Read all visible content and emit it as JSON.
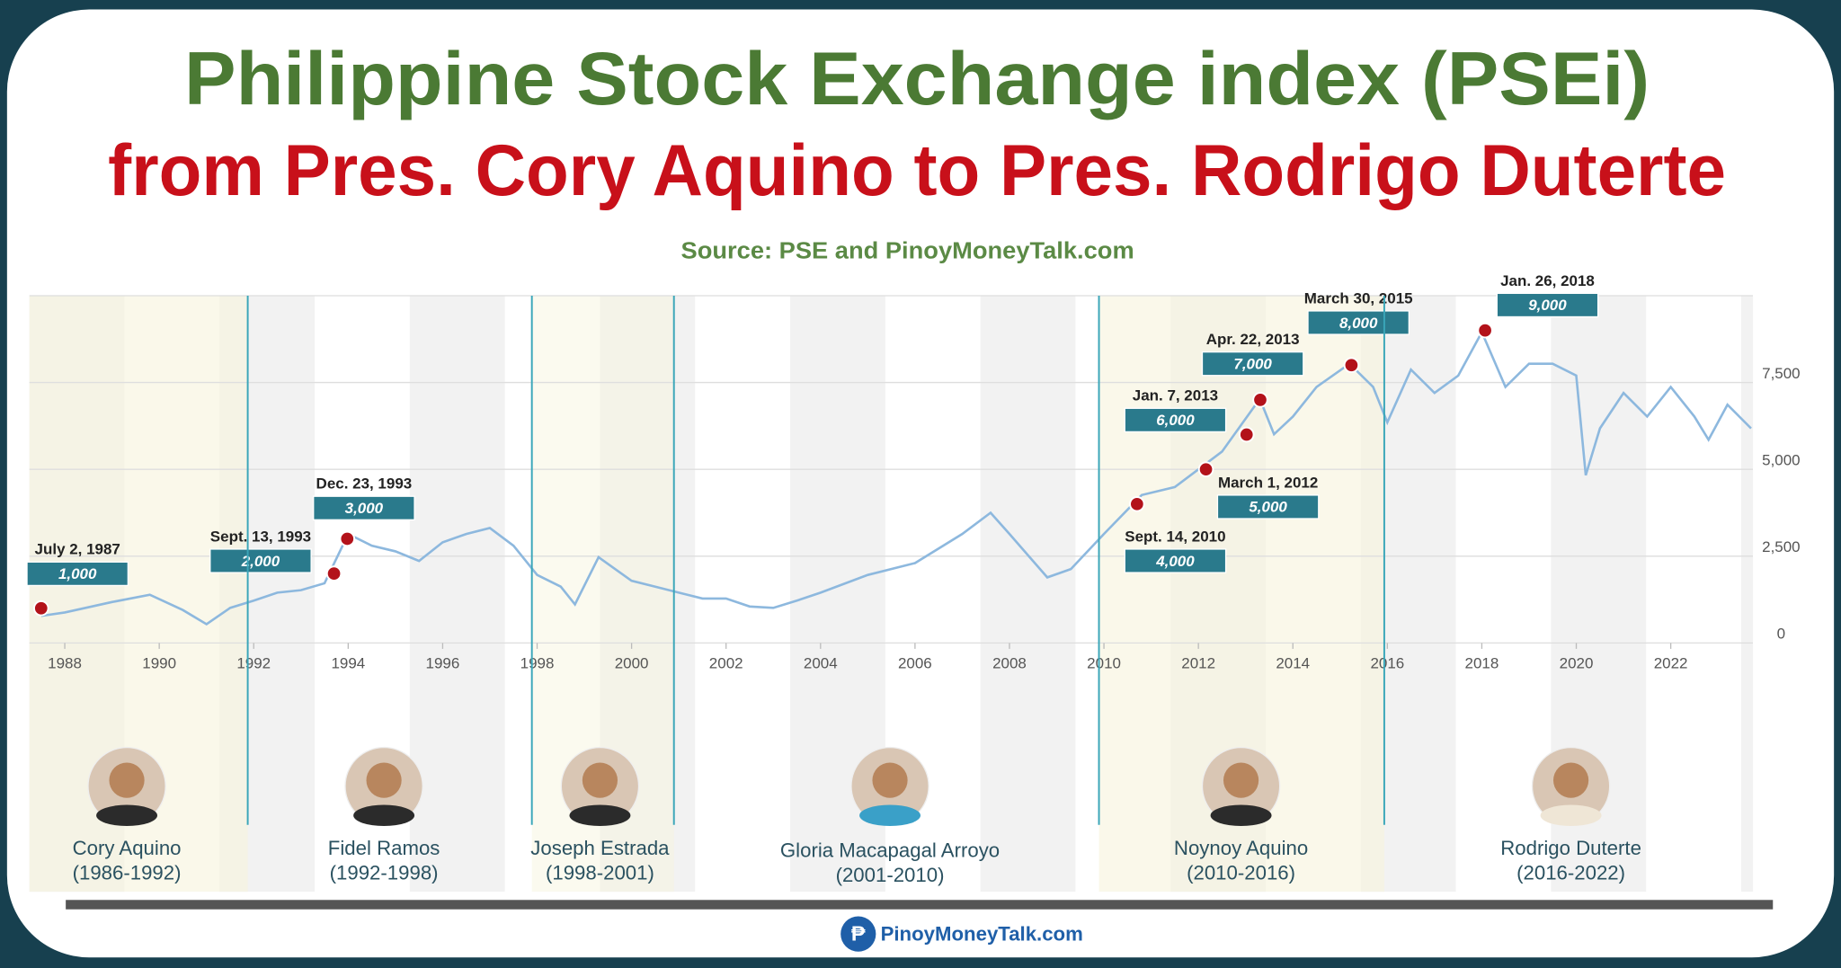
{
  "chart_data": {
    "type": "line",
    "title": "Philippine Stock Exchange index (PSEi)",
    "subtitle": "from Pres. Cory Aquino to Pres. Rodrigo Duterte",
    "source": "Source: PSE and PinoyMoneyTalk.com",
    "x": [
      1987.5,
      1988,
      1989,
      1989.8,
      1990.5,
      1991,
      1991.5,
      1992,
      1992.5,
      1993,
      1993.5,
      1994,
      1994.5,
      1995,
      1995.5,
      1996,
      1996.5,
      1997,
      1997.5,
      1998,
      1998.5,
      1998.8,
      1999.3,
      2000,
      2000.5,
      2001,
      2001.5,
      2002,
      2002.5,
      2003,
      2003.5,
      2004,
      2005,
      2006,
      2007,
      2007.6,
      2008,
      2008.8,
      2009.3,
      2010,
      2010.8,
      2011.5,
      2012,
      2012.5,
      2013.3,
      2013.6,
      2014,
      2014.5,
      2015.2,
      2015.7,
      2016,
      2016.5,
      2017,
      2017.5,
      2018,
      2018.5,
      2019,
      2019.5,
      2020,
      2020.2,
      2020.5,
      2021,
      2021.5,
      2022,
      2022.5,
      2022.8,
      2023.2,
      2023.7
    ],
    "series": [
      {
        "color": "#8db8de",
        "values": [
          780,
          880,
          1180,
          1390,
          950,
          540,
          1010,
          1220,
          1450,
          1520,
          1720,
          3140,
          2800,
          2640,
          2360,
          2900,
          3140,
          3310,
          2800,
          1960,
          1620,
          1110,
          2470,
          1790,
          1620,
          1450,
          1280,
          1280,
          1050,
          1010,
          1220,
          1450,
          1960,
          2300,
          3140,
          3750,
          3140,
          1890,
          2130,
          3140,
          4260,
          4490,
          5000,
          5510,
          7030,
          6010,
          6520,
          7370,
          8040,
          7370,
          6350,
          7870,
          7200,
          7700,
          8950,
          7370,
          8040,
          8040,
          7700,
          4830,
          6180,
          7200,
          6520,
          7370,
          6520,
          5850,
          6860,
          6180
        ]
      }
    ],
    "xlim": [
      1987.25,
      2023.74
    ],
    "xticks": [
      1988,
      1990,
      1992,
      1994,
      1996,
      1998,
      2000,
      2002,
      2004,
      2006,
      2008,
      2010,
      2012,
      2014,
      2016,
      2018,
      2020,
      2022
    ],
    "ylim": [
      0,
      10000
    ],
    "yticks": [
      0,
      {
        "value": 2500,
        "label": "2,500"
      },
      {
        "value": 5000,
        "label": "5,000"
      },
      {
        "value": 7500,
        "label": "7,500"
      }
    ],
    "grid": true,
    "milestones": [
      {
        "date": "July 2, 1987",
        "x": 1987.5,
        "value": 1000,
        "value_label": "1,000"
      },
      {
        "date": "Sept. 13, 1993",
        "x": 1993.7,
        "value": 2000,
        "value_label": "2,000"
      },
      {
        "date": "Dec. 23, 1993",
        "x": 1993.98,
        "value": 3000,
        "value_label": "3,000"
      },
      {
        "date": "Sept. 14, 2010",
        "x": 2010.7,
        "value": 4000,
        "value_label": "4,000"
      },
      {
        "date": "March 1, 2012",
        "x": 2012.16,
        "value": 5000,
        "value_label": "5,000"
      },
      {
        "date": "Jan. 7, 2013",
        "x": 2013.02,
        "value": 6000,
        "value_label": "6,000"
      },
      {
        "date": "Apr. 22, 2013",
        "x": 2013.31,
        "value": 7000,
        "value_label": "7,000"
      },
      {
        "date": "March 30, 2015",
        "x": 2015.24,
        "value": 8000,
        "value_label": "8,000"
      },
      {
        "date": "Jan. 26, 2018",
        "x": 2018.07,
        "value": 9000,
        "value_label": "9,000"
      }
    ],
    "presidents": [
      {
        "name": "Cory Aquino",
        "term": "(1986-1992)"
      },
      {
        "name": "Fidel Ramos",
        "term": "(1992-1998)"
      },
      {
        "name": "Joseph Estrada",
        "term": "(1998-2001)"
      },
      {
        "name": "Gloria Macapagal Arroyo",
        "term": "(2001-2010)"
      },
      {
        "name": "Noynoy Aquino",
        "term": "(2010-2016)"
      },
      {
        "name": "Rodrigo Duterte",
        "term": "(2016-2022)"
      }
    ]
  },
  "footer": "PinoyMoneyTalk.com"
}
